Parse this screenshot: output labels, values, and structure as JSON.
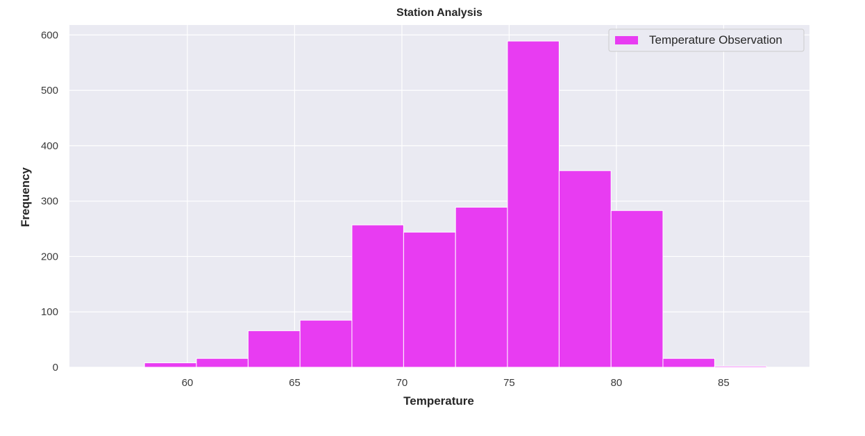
{
  "chart_data": {
    "type": "bar",
    "title": "Station Analysis",
    "xlabel": "Temperature",
    "ylabel": "Frequency",
    "bin_edges": [
      58.0,
      60.42,
      62.83,
      65.25,
      67.67,
      70.08,
      72.5,
      74.92,
      77.33,
      79.75,
      82.17,
      84.58,
      87.0
    ],
    "values": [
      8,
      16,
      66,
      85,
      257,
      244,
      289,
      589,
      355,
      283,
      16,
      2
    ],
    "xlim": [
      54.5,
      89.0
    ],
    "ylim": [
      0,
      618
    ],
    "x_ticks": [
      60,
      65,
      70,
      75,
      80,
      85
    ],
    "y_ticks": [
      0,
      100,
      200,
      300,
      400,
      500,
      600
    ],
    "series": [
      {
        "name": "Temperature Observation",
        "values": [
          8,
          16,
          66,
          85,
          257,
          244,
          289,
          589,
          355,
          283,
          16,
          2
        ]
      }
    ],
    "legend_position": "top-right",
    "grid": true,
    "colors": {
      "bar": "#e83cf2",
      "bar_edge": "#ffffff",
      "plot_bg": "#eaeaf2",
      "grid": "#ffffff"
    }
  }
}
